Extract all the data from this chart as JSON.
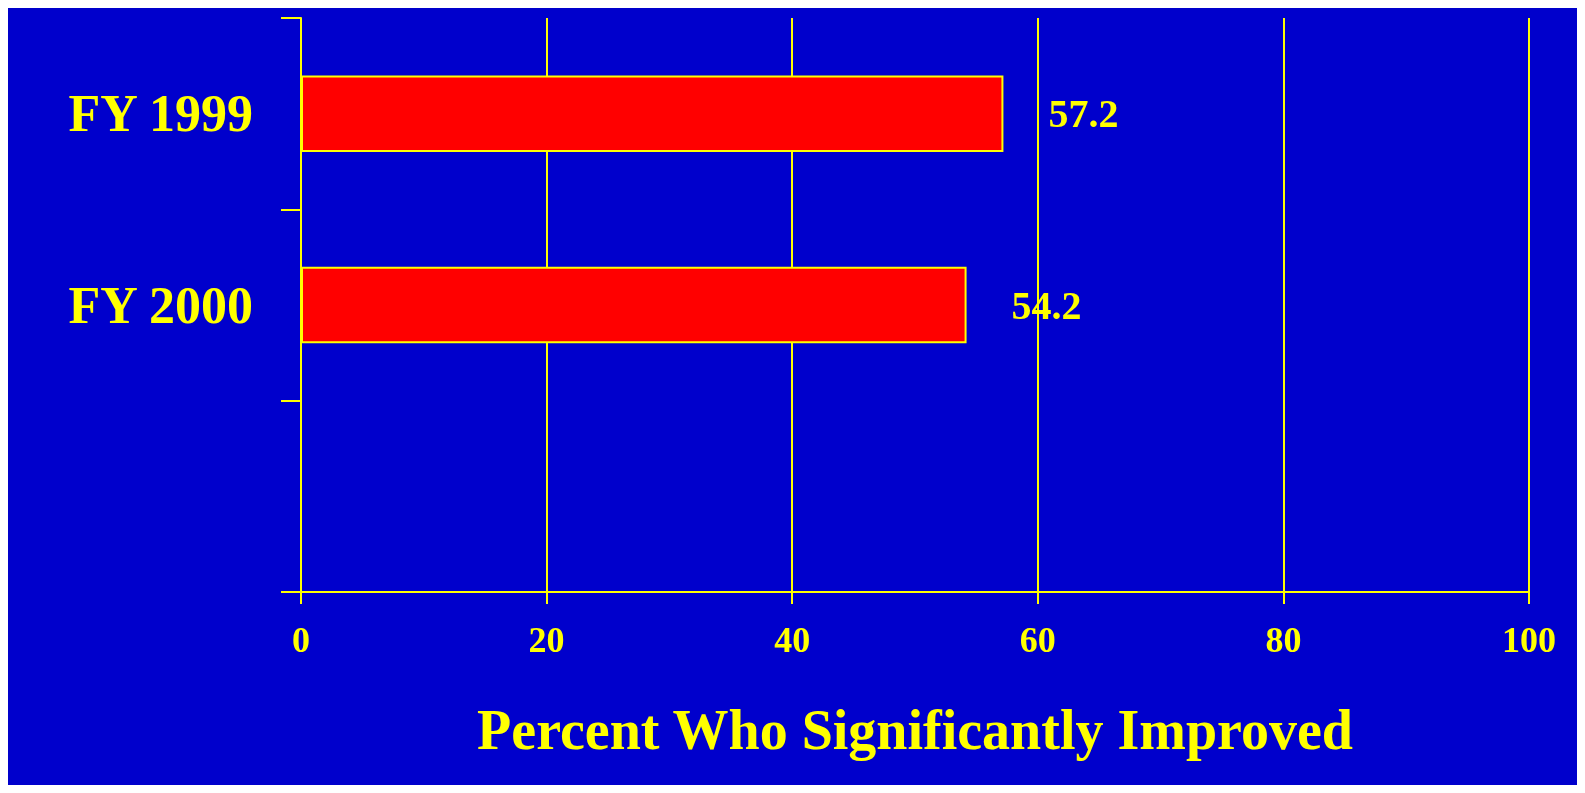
{
  "chart_data": {
    "type": "bar",
    "orientation": "horizontal",
    "xlabel": "Percent Who Significantly Improved",
    "categories": [
      "FY 1999",
      "FY 2000",
      null
    ],
    "values": [
      57.2,
      54.2,
      null
    ],
    "color": "#ff0000",
    "xlim": [
      0,
      100
    ],
    "xticks": [
      0,
      20,
      40,
      60,
      80,
      100
    ],
    "grid": "x",
    "data_labels": true
  }
}
